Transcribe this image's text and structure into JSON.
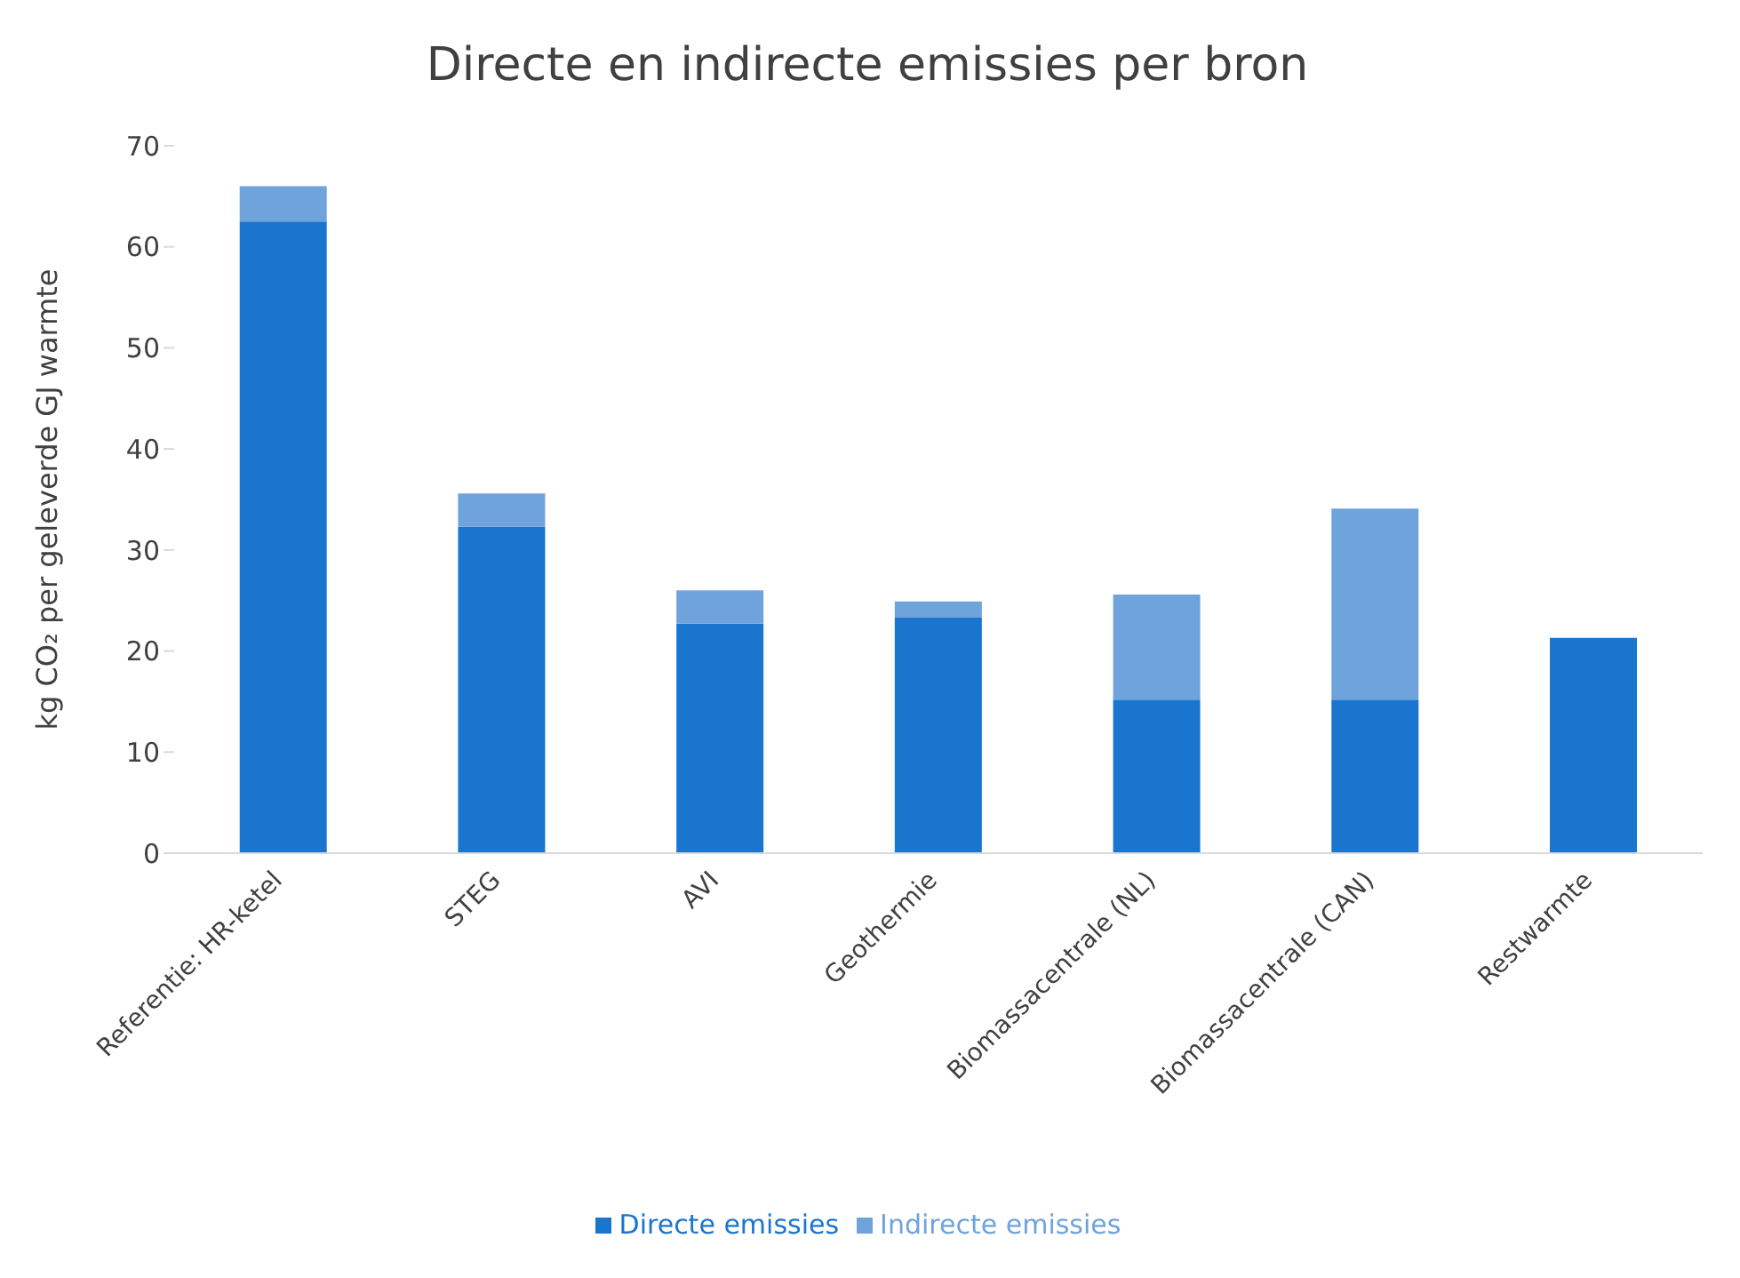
{
  "chart_data": {
    "type": "bar",
    "title": "Directe en indirecte emissies per bron",
    "ylabel": "kg CO₂ per geleverde GJ warmte",
    "categories": [
      "Referentie: HR-ketel",
      "STEG",
      "AVI",
      "Geothermie",
      "Biomassacentrale (NL)",
      "Biomassacentrale (CAN)",
      "Restwarmte"
    ],
    "series": [
      {
        "name": "Directe emissies",
        "color": "#1a75cf",
        "values": [
          62.5,
          32.3,
          22.7,
          23.3,
          15.2,
          15.2,
          21.3
        ]
      },
      {
        "name": "Indirecte emissies",
        "color": "#6fa3dc",
        "values": [
          3.5,
          3.3,
          3.3,
          1.6,
          10.4,
          18.9,
          0
        ]
      }
    ],
    "stacked": true,
    "ylim": [
      0,
      70
    ],
    "yticks": [
      0,
      10,
      20,
      30,
      40,
      50,
      60,
      70
    ],
    "grid": false,
    "legend": "bottom"
  }
}
